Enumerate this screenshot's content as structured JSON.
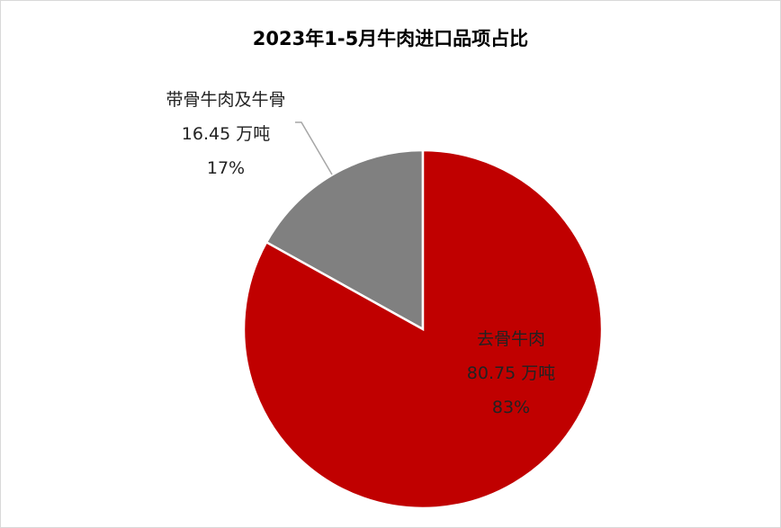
{
  "chart_data": {
    "type": "pie",
    "title": "2023年1-5月牛肉进口品项占比",
    "slices": [
      {
        "name": "去骨牛肉",
        "value": 80.75,
        "value_label": "80.75 万吨",
        "percent_label": "83%",
        "color": "#c00000"
      },
      {
        "name": "带骨牛肉及牛骨",
        "value": 16.45,
        "value_label": "16.45 万吨",
        "percent_label": "17%",
        "color": "#808080"
      }
    ],
    "start_angle": "12 o'clock",
    "direction": "clockwise",
    "legend": "none"
  }
}
